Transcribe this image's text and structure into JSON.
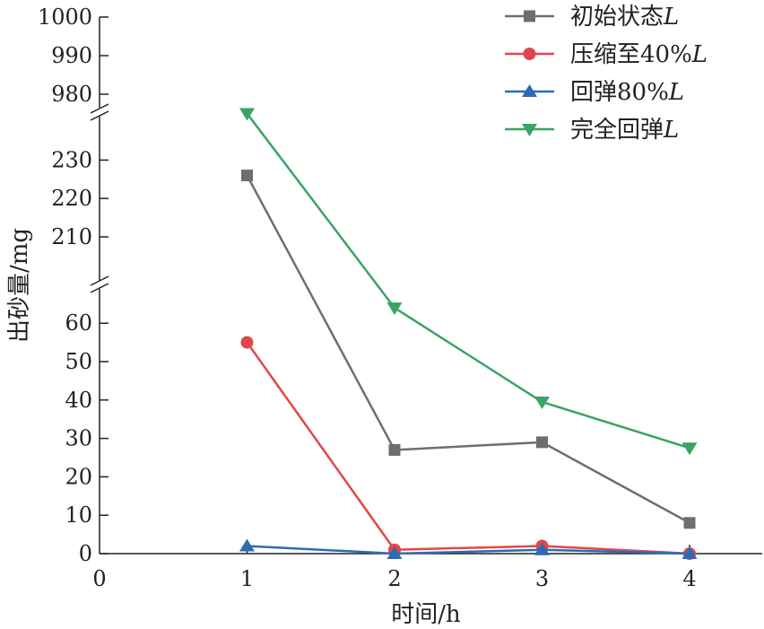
{
  "chart_data": {
    "type": "line",
    "title": "",
    "xlabel": "时间/h",
    "ylabel": "出砂量/mg",
    "x": [
      1,
      2,
      3,
      4
    ],
    "x_ticks": [
      "0",
      "1",
      "2",
      "3",
      "4"
    ],
    "xlim": [
      0,
      4.5
    ],
    "y_segments": [
      {
        "range": [
          0,
          67
        ],
        "ticks": [
          "0",
          "10",
          "20",
          "30",
          "40",
          "50",
          "60"
        ]
      },
      {
        "range": [
          200,
          237
        ],
        "ticks": [
          "210",
          "220",
          "230"
        ]
      },
      {
        "range": [
          974,
          1002
        ],
        "ticks": [
          "980",
          "990",
          "1000"
        ]
      }
    ],
    "axis_break": true,
    "grid": false,
    "legend_position": "top-right",
    "series": [
      {
        "name": "初始状态",
        "name_italic": "L",
        "color": "#6e6e6e",
        "marker": "square",
        "values": [
          226,
          27,
          29,
          8
        ]
      },
      {
        "name": "压缩至40%",
        "name_italic": "L",
        "color": "#e0474c",
        "marker": "circle",
        "values": [
          55,
          1,
          2,
          0
        ]
      },
      {
        "name": "回弹80%",
        "name_italic": "L",
        "color": "#2b6cb3",
        "marker": "triangle-up",
        "values": [
          2,
          0,
          1,
          0
        ]
      },
      {
        "name": "完全回弹",
        "name_italic": "L",
        "color": "#3aa364",
        "marker": "triangle-down",
        "values": [
          975,
          64,
          39.5,
          27.5
        ]
      }
    ]
  }
}
